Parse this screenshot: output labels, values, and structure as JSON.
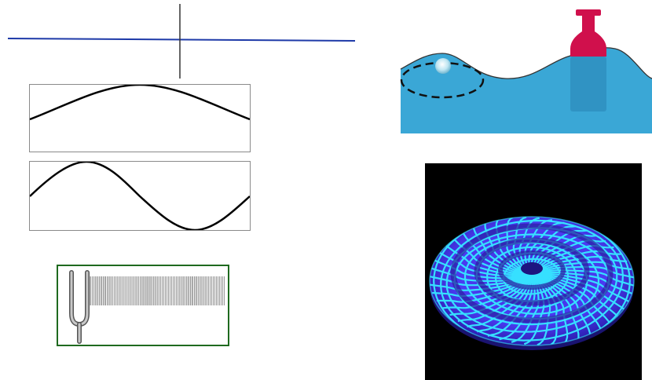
{
  "colors": {
    "string_line": "#1e3aa8",
    "plot_border": "#8a8a8a",
    "wave_stroke": "#000000",
    "fork_frame": "#1f6a1f",
    "fork_metal": "#8c8c8c",
    "water": "#3aa7d6",
    "buoy": "#d0104c",
    "gw_mesh_fill": "#4a3cf2",
    "gw_mesh_lines": "#36e0ff",
    "gw_background": "#000000"
  },
  "icons": {
    "tuning_fork": "tuning-fork-icon",
    "buoy": "buoy-icon",
    "floating_ball": "floating-ball-icon"
  },
  "waves": [
    {
      "name": "long-wavelength",
      "cycles_shown": 0.5
    },
    {
      "name": "short-wavelength",
      "cycles_shown": 1.0
    }
  ]
}
